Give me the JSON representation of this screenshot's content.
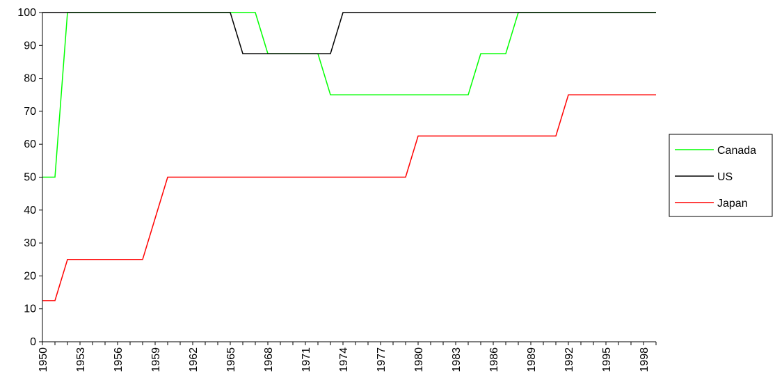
{
  "chart_data": {
    "type": "line",
    "title": "",
    "xlabel": "",
    "ylabel": "",
    "ylim": [
      0,
      100
    ],
    "yticks": [
      0,
      10,
      20,
      30,
      40,
      50,
      60,
      70,
      80,
      90,
      100
    ],
    "xlim": [
      1950,
      1999
    ],
    "x_tick_labels": [
      "1950",
      "1953",
      "1956",
      "1959",
      "1962",
      "1965",
      "1968",
      "1971",
      "1974",
      "1977",
      "1980",
      "1983",
      "1986",
      "1989",
      "1992",
      "1995",
      "1998"
    ],
    "grid": false,
    "legend_position": "right",
    "x": [
      1950,
      1951,
      1952,
      1953,
      1954,
      1955,
      1956,
      1957,
      1958,
      1959,
      1960,
      1961,
      1962,
      1963,
      1964,
      1965,
      1966,
      1967,
      1968,
      1969,
      1970,
      1971,
      1972,
      1973,
      1974,
      1975,
      1976,
      1977,
      1978,
      1979,
      1980,
      1981,
      1982,
      1983,
      1984,
      1985,
      1986,
      1987,
      1988,
      1989,
      1990,
      1991,
      1992,
      1993,
      1994,
      1995,
      1996,
      1997,
      1998,
      1999
    ],
    "series": [
      {
        "name": "Canada",
        "color": "#00ff00",
        "values": [
          50,
          50,
          100,
          100,
          100,
          100,
          100,
          100,
          100,
          100,
          100,
          100,
          100,
          100,
          100,
          100,
          100,
          100,
          87.5,
          87.5,
          87.5,
          87.5,
          87.5,
          75,
          75,
          75,
          75,
          75,
          75,
          75,
          75,
          75,
          75,
          75,
          75,
          87.5,
          87.5,
          87.5,
          100,
          100,
          100,
          100,
          100,
          100,
          100,
          100,
          100,
          100,
          100,
          100
        ]
      },
      {
        "name": "US",
        "color": "#000000",
        "values": [
          100,
          100,
          100,
          100,
          100,
          100,
          100,
          100,
          100,
          100,
          100,
          100,
          100,
          100,
          100,
          100,
          87.5,
          87.5,
          87.5,
          87.5,
          87.5,
          87.5,
          87.5,
          87.5,
          100,
          100,
          100,
          100,
          100,
          100,
          100,
          100,
          100,
          100,
          100,
          100,
          100,
          100,
          100,
          100,
          100,
          100,
          100,
          100,
          100,
          100,
          100,
          100,
          100,
          100
        ]
      },
      {
        "name": "Japan",
        "color": "#ff0000",
        "values": [
          12.5,
          12.5,
          25,
          25,
          25,
          25,
          25,
          25,
          25,
          37.5,
          50,
          50,
          50,
          50,
          50,
          50,
          50,
          50,
          50,
          50,
          50,
          50,
          50,
          50,
          50,
          50,
          50,
          50,
          50,
          50,
          62.5,
          62.5,
          62.5,
          62.5,
          62.5,
          62.5,
          62.5,
          62.5,
          62.5,
          62.5,
          62.5,
          62.5,
          75,
          75,
          75,
          75,
          75,
          75,
          75,
          75
        ]
      }
    ]
  }
}
